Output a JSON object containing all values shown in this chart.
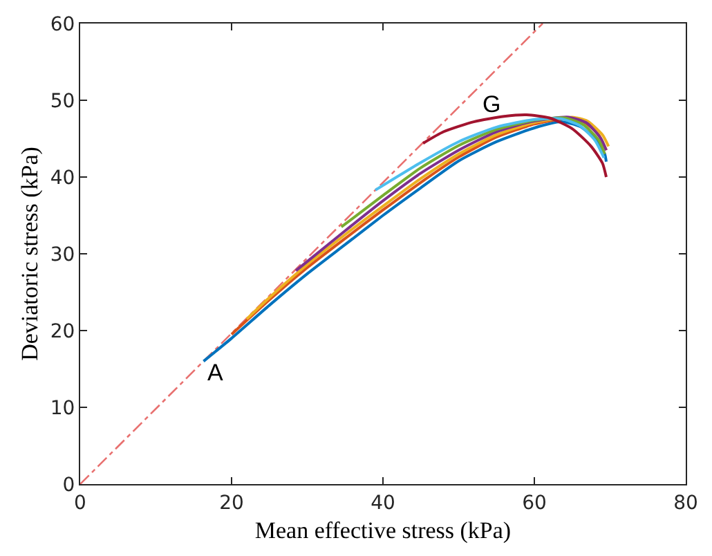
{
  "chart_data": {
    "type": "line",
    "xlabel": "Mean effective stress (kPa)",
    "ylabel": "Deviatoric stress (kPa)",
    "xlim": [
      0,
      80
    ],
    "xticks": [
      0,
      20,
      40,
      60,
      80
    ],
    "ylim": [
      0,
      60
    ],
    "yticks": [
      0,
      10,
      20,
      30,
      40,
      50,
      60
    ],
    "marker": "none",
    "series": [
      {
        "color": "#e8706f",
        "line_style": "dashed",
        "x": [
          0,
          61.1
        ],
        "values": [
          0,
          60
        ]
      },
      {
        "color": "#0072bd",
        "x": [
          16.3,
          20,
          25,
          30,
          35,
          40,
          45,
          50,
          55,
          60,
          63.5,
          66,
          68,
          69.3,
          69.5
        ],
        "values": [
          16,
          19,
          23.3,
          27.4,
          31.2,
          35,
          38.6,
          42.1,
          44.6,
          46.4,
          47.2,
          46.6,
          45,
          43,
          42
        ]
      },
      {
        "color": "#d95319",
        "x": [
          20,
          25,
          30,
          35,
          40,
          45,
          50,
          55,
          60,
          64,
          66.5,
          68.5,
          69.5
        ],
        "values": [
          19.5,
          24,
          28.2,
          32,
          35.7,
          39.3,
          42.6,
          45.2,
          46.9,
          47.6,
          47.2,
          45.5,
          43.5
        ]
      },
      {
        "color": "#edb120",
        "x": [
          22,
          25,
          30,
          35,
          40,
          45,
          50,
          55,
          60,
          65,
          67,
          69,
          69.8
        ],
        "values": [
          21.5,
          24.3,
          28.6,
          32.5,
          36.2,
          39.8,
          43,
          45.5,
          47.1,
          47.8,
          47.3,
          45.5,
          44
        ]
      },
      {
        "color": "#7e2f8e",
        "x": [
          28.5,
          30,
          35,
          40,
          45,
          50,
          55,
          60,
          64.5,
          67,
          68.8,
          69.5
        ],
        "values": [
          27.8,
          29,
          33,
          36.9,
          40.5,
          43.5,
          45.9,
          47.3,
          47.8,
          47,
          45,
          43.5
        ]
      },
      {
        "color": "#77ac30",
        "x": [
          34.5,
          40,
          45,
          50,
          55,
          60,
          64,
          66.5,
          68.5,
          69.3
        ],
        "values": [
          33.5,
          37.6,
          41.2,
          44.1,
          46.2,
          47.4,
          47.7,
          46.8,
          44.8,
          43
        ]
      },
      {
        "color": "#4dbeee",
        "x": [
          39,
          45,
          50,
          55,
          60,
          63.5,
          66,
          68,
          69.2
        ],
        "values": [
          38.3,
          41.9,
          44.6,
          46.5,
          47.5,
          47.6,
          46.7,
          44.8,
          42.5
        ]
      },
      {
        "color": "#a2142f",
        "x": [
          45.3,
          48,
          52,
          56,
          59,
          62,
          65,
          67.5,
          69,
          69.5
        ],
        "values": [
          44.4,
          45.9,
          47.2,
          47.9,
          48.1,
          47.7,
          46.3,
          44,
          41.8,
          40
        ]
      }
    ],
    "annotations": [
      "A",
      "G"
    ]
  }
}
